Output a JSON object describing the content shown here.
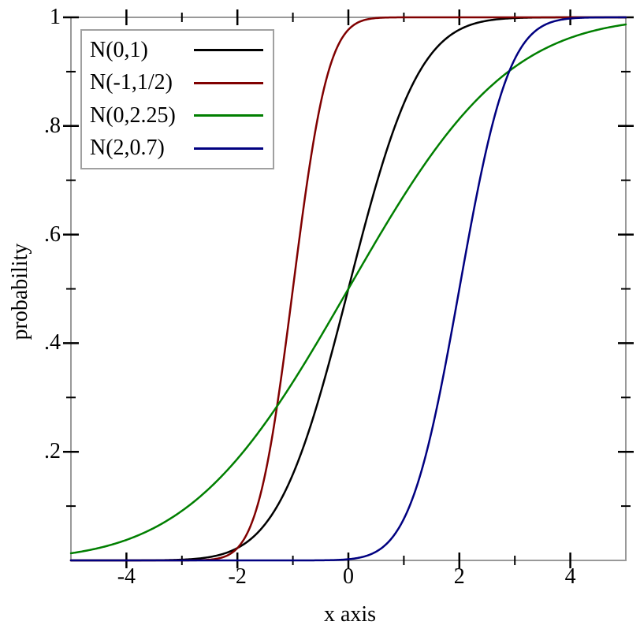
{
  "figure": {
    "background": "#ffffff",
    "border_color": "#999999",
    "tick_color": "#000000",
    "text_color": "#000000"
  },
  "chart_data": {
    "type": "line",
    "title": "",
    "xlabel": "x axis",
    "ylabel": "probability",
    "xlim": [
      -5,
      5
    ],
    "ylim": [
      0,
      1
    ],
    "grid": false,
    "legend_position": "top-left",
    "curve_kind": "normal_cdf",
    "x_axis": {
      "major_ticks": [
        -4,
        -2,
        0,
        2,
        4
      ],
      "major_labels": [
        "-4",
        "-2",
        "0",
        "2",
        "4"
      ],
      "minor_ticks": [
        -3,
        -1,
        1,
        3
      ]
    },
    "y_axis": {
      "major_ticks": [
        1,
        0.8,
        0.6,
        0.4,
        0.2
      ],
      "major_labels": [
        "1",
        ".8",
        ".6",
        ".4",
        ".2"
      ],
      "minor_ticks": [
        0.9,
        0.7,
        0.5,
        0.3,
        0.1
      ]
    },
    "x_samples": [
      -5,
      -4,
      -3,
      -2,
      -1,
      0,
      1,
      2,
      3,
      4,
      5
    ],
    "series": [
      {
        "name": "N(0,1)",
        "color": "#000000",
        "mean": 0,
        "stddev": 1,
        "values": [
          0.0,
          0.0,
          0.0013,
          0.0228,
          0.1587,
          0.5,
          0.8413,
          0.9772,
          0.9987,
          1.0,
          1.0
        ]
      },
      {
        "name": "N(-1,1/2)",
        "color": "#800000",
        "mean": -1,
        "stddev": 0.5,
        "values": [
          0.0,
          0.0,
          0.0,
          0.0228,
          0.5,
          0.9772,
          1.0,
          1.0,
          1.0,
          1.0,
          1.0
        ]
      },
      {
        "name": "N(0,2.25)",
        "color": "#007f00",
        "mean": 0,
        "stddev": 2.25,
        "values": [
          0.0131,
          0.0377,
          0.0912,
          0.187,
          0.3284,
          0.5,
          0.6716,
          0.813,
          0.9088,
          0.9623,
          0.9869
        ]
      },
      {
        "name": "N(2,0.7)",
        "color": "#000080",
        "mean": 2,
        "stddev": 0.7,
        "values": [
          0.0,
          0.0,
          0.0,
          0.0,
          0.0,
          0.0021,
          0.0766,
          0.5,
          0.9234,
          0.9979,
          1.0
        ]
      }
    ]
  }
}
